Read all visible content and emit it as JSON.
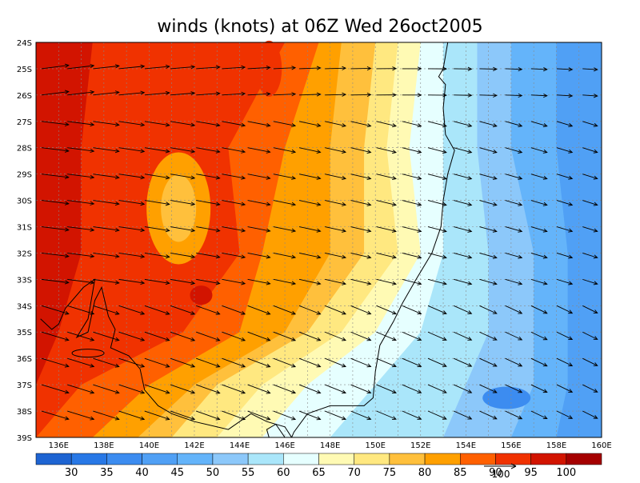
{
  "title": "winds (knots) at 06Z Wed 26oct2005",
  "lat_labels": [
    "24S",
    "25S",
    "26S",
    "27S",
    "28S",
    "29S",
    "30S",
    "31S",
    "32S",
    "33S",
    "34S",
    "35S",
    "36S",
    "37S",
    "38S",
    "39S"
  ],
  "lon_labels": [
    "136E",
    "138E",
    "140E",
    "142E",
    "144E",
    "146E",
    "148E",
    "150E",
    "152E",
    "154E",
    "156E",
    "158E",
    "160E"
  ],
  "colorbar": {
    "colors": [
      "#1e64d2",
      "#2878e6",
      "#3c8cf0",
      "#50a0f5",
      "#64b4fa",
      "#8cc8fa",
      "#aae6fa",
      "#e6ffff",
      "#fffab4",
      "#ffe880",
      "#ffc03c",
      "#ffa000",
      "#ff6000",
      "#f03200",
      "#d21400",
      "#a50000"
    ],
    "levels": [
      30,
      35,
      40,
      45,
      50,
      55,
      60,
      65,
      70,
      75,
      80,
      85,
      90,
      95,
      100
    ]
  },
  "vector_reference": "100"
}
